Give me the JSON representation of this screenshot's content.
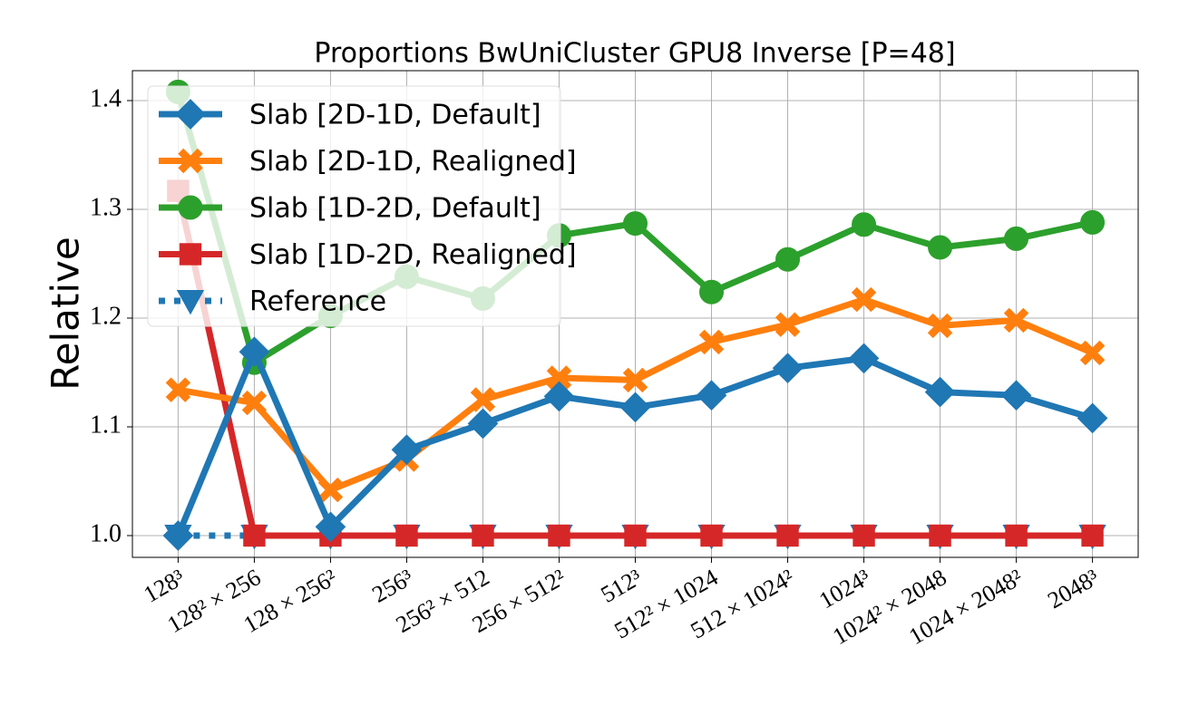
{
  "chart_data": {
    "type": "line",
    "title": "Proportions BwUniCluster GPU8 Inverse [P=48]",
    "ylabel": "Relative",
    "categories": [
      "128³",
      "128² × 256",
      "128 × 256²",
      "256³",
      "256² × 512",
      "256 × 512²",
      "512³",
      "512² × 1024",
      "512 × 1024²",
      "1024³",
      "1024² × 2048",
      "1024 × 2048²",
      "2048³"
    ],
    "series": [
      {
        "name": "Slab [2D-1D, Default]",
        "color": "#1f77b4",
        "marker": "diamond",
        "values": [
          1.0,
          1.169,
          1.008,
          1.079,
          1.103,
          1.128,
          1.118,
          1.129,
          1.154,
          1.163,
          1.132,
          1.129,
          1.108
        ]
      },
      {
        "name": "Slab [2D-1D, Realigned]",
        "color": "#ff7f0e",
        "marker": "x",
        "values": [
          1.134,
          1.122,
          1.042,
          1.07,
          1.125,
          1.145,
          1.143,
          1.178,
          1.194,
          1.217,
          1.193,
          1.198,
          1.168
        ]
      },
      {
        "name": "Slab [1D-2D, Default]",
        "color": "#2ca02c",
        "marker": "circle",
        "values": [
          1.408,
          1.159,
          1.202,
          1.238,
          1.218,
          1.276,
          1.287,
          1.224,
          1.254,
          1.286,
          1.265,
          1.273,
          1.288
        ]
      },
      {
        "name": "Slab [1D-2D, Realigned]",
        "color": "#d62728",
        "marker": "square",
        "values": [
          1.317,
          1.0,
          1.0,
          1.0,
          1.0,
          1.0,
          1.0,
          1.0,
          1.0,
          1.0,
          1.0,
          1.0,
          1.0
        ]
      },
      {
        "name": "Reference",
        "color": "#1f77b4",
        "marker": "triangle-down",
        "linestyle": "dotted",
        "values": [
          1.0,
          1.0,
          1.0,
          1.0,
          1.0,
          1.0,
          1.0,
          1.0,
          1.0,
          1.0,
          1.0,
          1.0,
          1.0
        ]
      }
    ],
    "ylim": [
      0.98,
      1.4275
    ],
    "yticks": [
      {
        "value": 1.0,
        "label": "1.0"
      },
      1.1,
      1.2,
      1.3,
      1.4
    ],
    "grid": true,
    "legend": "upper left"
  }
}
